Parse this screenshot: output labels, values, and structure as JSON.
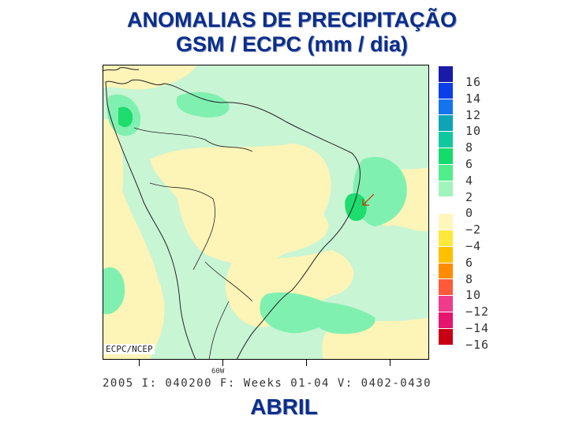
{
  "title": "ANOMALIAS DE PRECIPITAÇÃO GSM / ECPC (mm / dia)",
  "month": "ABRIL",
  "map_credit": "ECPC/NCEP",
  "lon_label": "60W",
  "footer": "2005 I: 040200 F: Weeks 01-04 V: 0402-0430",
  "colors": {
    "title": "#0b2e8a",
    "dry_light": "#fdf4b8",
    "wet_light": "#c8f5d4",
    "wet_mid": "#80f0b0",
    "wet_strong": "#1edc6e",
    "coastline": "#222222"
  },
  "colorbar": {
    "labels": [
      "16",
      "14",
      "12",
      "10",
      "8",
      "6",
      "4",
      "2",
      "0",
      "−2",
      "−4",
      "6",
      "8",
      "10",
      "−12",
      "−14",
      "−16"
    ],
    "colors": [
      "#1a1aa8",
      "#0a3ee6",
      "#1673ee",
      "#0ca5b4",
      "#10c8a0",
      "#14dc6c",
      "#50ee8c",
      "#a0f5bc",
      "#ffffff",
      "#fff6bc",
      "#ffe83c",
      "#ffc000",
      "#ff8c00",
      "#ff5a3c",
      "#f03c8c",
      "#e6146e",
      "#c80014"
    ]
  }
}
